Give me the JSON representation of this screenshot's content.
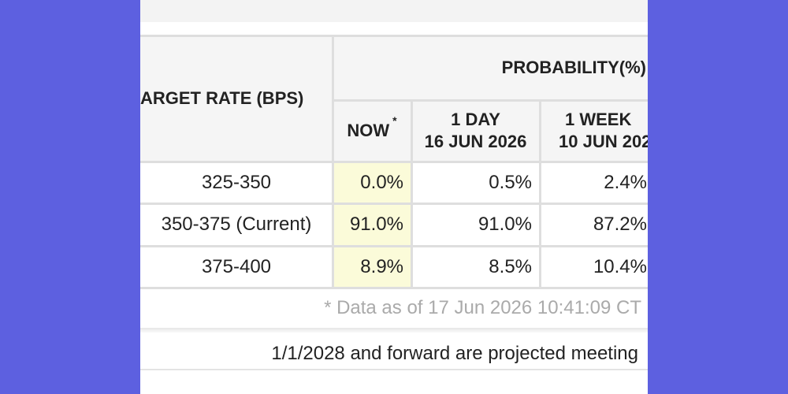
{
  "table": {
    "header": {
      "target_rate": "ARGET RATE (BPS)",
      "probability": "PROBABILITY(%)",
      "now": "NOW",
      "now_mark": "*",
      "col1": [
        "1 DAY",
        "16 JUN 2026"
      ],
      "col2": [
        "1 WEEK",
        "10 JUN 202"
      ]
    },
    "rows": [
      [
        "325-350",
        "0.0%",
        "0.5%",
        "2.4%"
      ],
      [
        "350-375 (Current)",
        "91.0%",
        "91.0%",
        "87.2%"
      ],
      [
        "375-400",
        "8.9%",
        "8.5%",
        "10.4%"
      ]
    ]
  },
  "footnote": "* Data as of 17 Jun 2026 10:41:09 CT",
  "note": "1/1/2028 and forward are projected meeting"
}
